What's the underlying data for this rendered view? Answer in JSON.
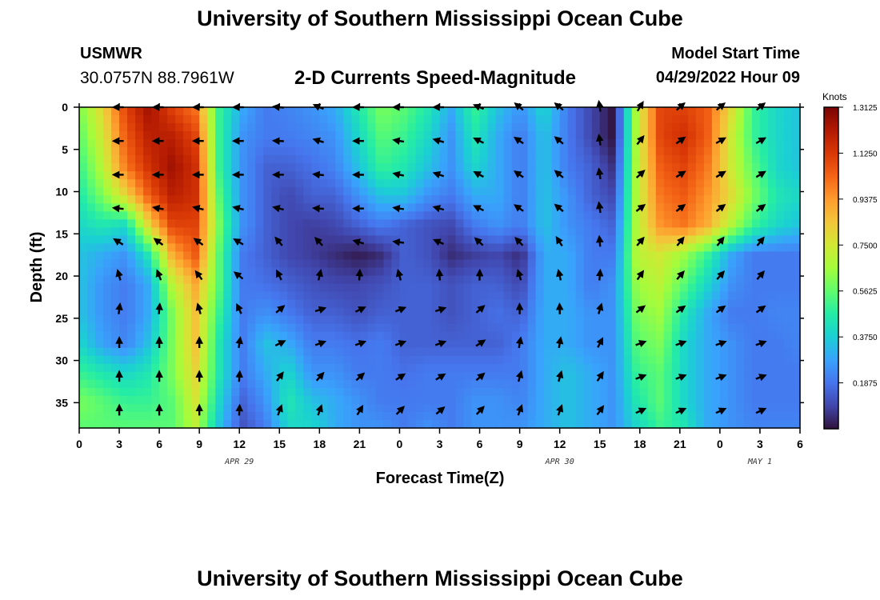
{
  "header": {
    "title": "University of Southern Mississippi Ocean Cube",
    "station": "USMWR",
    "coordinates": "30.0757N  88.7961W",
    "model_start_label": "Model Start Time",
    "model_start_value": "04/29/2022 Hour 09"
  },
  "footer": {
    "title": "University of Southern Mississippi Ocean Cube"
  },
  "chart_data": {
    "type": "heatmap",
    "title": "2-D Currents Speed-Magnitude",
    "xlabel": "Forecast Time(Z)",
    "ylabel": "Depth (ft)",
    "x_ticks": [
      "0",
      "3",
      "6",
      "9",
      "12",
      "15",
      "18",
      "21",
      "0",
      "3",
      "6",
      "9",
      "12",
      "15",
      "18",
      "21",
      "0",
      "3",
      "6"
    ],
    "x_hours": [
      0,
      3,
      6,
      9,
      12,
      15,
      18,
      21,
      24,
      27,
      30,
      33,
      36,
      39,
      42,
      45,
      48,
      51,
      54
    ],
    "date_labels": [
      {
        "text": "APR 29",
        "hour": 12
      },
      {
        "text": "APR 30",
        "hour": 36
      },
      {
        "text": "MAY 1",
        "hour": 51
      }
    ],
    "xlim": [
      0,
      54
    ],
    "y_ticks": [
      "0",
      "5",
      "10",
      "15",
      "20",
      "25",
      "30",
      "35"
    ],
    "y_values": [
      0,
      5,
      10,
      15,
      20,
      25,
      30,
      35
    ],
    "ylim": [
      0,
      38
    ],
    "colorbar": {
      "unit": "Knots",
      "ticks": [
        "1.3125",
        "1.1250",
        "0.9375",
        "0.7500",
        "0.5625",
        "0.3750",
        "0.1875"
      ],
      "tick_values": [
        1.3125,
        1.125,
        0.9375,
        0.75,
        0.5625,
        0.375,
        0.1875
      ],
      "range": [
        0,
        1.3125
      ],
      "colors": [
        "#30123b",
        "#4145ab",
        "#4675ed",
        "#39a2fc",
        "#1bcfd4",
        "#24eca6",
        "#61fc6c",
        "#a4fc3b",
        "#d1e834",
        "#f3c63a",
        "#fe9b2d",
        "#f36315",
        "#d93806",
        "#b11901",
        "#7a0403"
      ]
    },
    "arrow_hours": [
      3,
      6,
      9,
      12,
      15,
      18,
      21,
      24,
      27,
      30,
      33,
      36,
      39,
      42,
      45,
      48,
      51
    ],
    "arrow_depths": [
      0,
      4,
      8,
      12,
      16,
      20,
      24,
      28,
      32,
      36
    ],
    "speed_knots": [
      [
        0.6,
        0.8,
        1.1,
        1.25,
        1.1,
        1.0,
        0.5,
        0.3,
        0.2,
        0.22,
        0.25,
        0.3,
        0.45,
        0.6,
        0.55,
        0.45,
        0.3,
        0.5,
        0.35,
        0.25,
        0.4,
        0.2,
        0.1,
        0.0,
        0.7,
        1.1,
        1.1,
        1.05,
        0.8,
        0.5,
        0.4,
        0.35
      ],
      [
        0.55,
        0.75,
        1.05,
        1.2,
        1.2,
        1.1,
        0.5,
        0.25,
        0.2,
        0.2,
        0.22,
        0.25,
        0.4,
        0.55,
        0.5,
        0.4,
        0.25,
        0.45,
        0.3,
        0.2,
        0.35,
        0.2,
        0.1,
        0.0,
        0.7,
        1.1,
        1.15,
        1.05,
        0.75,
        0.5,
        0.4,
        0.35
      ],
      [
        0.5,
        0.7,
        1.0,
        1.15,
        1.25,
        1.15,
        0.5,
        0.25,
        0.15,
        0.15,
        0.18,
        0.22,
        0.35,
        0.5,
        0.45,
        0.35,
        0.25,
        0.4,
        0.3,
        0.2,
        0.35,
        0.2,
        0.15,
        0.05,
        0.7,
        1.05,
        1.1,
        1.0,
        0.75,
        0.55,
        0.4,
        0.35
      ],
      [
        0.45,
        0.6,
        0.8,
        1.05,
        1.2,
        1.15,
        0.55,
        0.25,
        0.15,
        0.1,
        0.15,
        0.15,
        0.25,
        0.35,
        0.35,
        0.25,
        0.2,
        0.3,
        0.3,
        0.2,
        0.35,
        0.25,
        0.15,
        0.1,
        0.7,
        1.0,
        1.05,
        0.95,
        0.8,
        0.6,
        0.45,
        0.4
      ],
      [
        0.4,
        0.45,
        0.4,
        0.8,
        1.1,
        1.1,
        0.6,
        0.25,
        0.15,
        0.1,
        0.08,
        0.1,
        0.15,
        0.2,
        0.15,
        0.12,
        0.1,
        0.2,
        0.25,
        0.2,
        0.35,
        0.25,
        0.2,
        0.15,
        0.7,
        0.95,
        1.0,
        0.9,
        0.7,
        0.5,
        0.4,
        0.35
      ],
      [
        0.35,
        0.3,
        0.25,
        0.45,
        0.9,
        1.05,
        0.55,
        0.2,
        0.15,
        0.1,
        0.08,
        0.05,
        0.02,
        0.05,
        0.15,
        0.12,
        0.05,
        0.08,
        0.1,
        0.05,
        0.3,
        0.3,
        0.2,
        0.2,
        0.7,
        0.75,
        0.65,
        0.5,
        0.3,
        0.2,
        0.2,
        0.2
      ],
      [
        0.35,
        0.25,
        0.2,
        0.3,
        0.7,
        0.9,
        0.55,
        0.2,
        0.18,
        0.15,
        0.12,
        0.1,
        0.1,
        0.12,
        0.15,
        0.15,
        0.12,
        0.15,
        0.15,
        0.1,
        0.3,
        0.3,
        0.2,
        0.25,
        0.65,
        0.7,
        0.55,
        0.4,
        0.25,
        0.2,
        0.2,
        0.2
      ],
      [
        0.35,
        0.25,
        0.2,
        0.3,
        0.6,
        0.85,
        0.5,
        0.2,
        0.25,
        0.2,
        0.15,
        0.15,
        0.12,
        0.15,
        0.15,
        0.15,
        0.12,
        0.15,
        0.18,
        0.15,
        0.3,
        0.3,
        0.25,
        0.25,
        0.6,
        0.65,
        0.45,
        0.3,
        0.2,
        0.2,
        0.22,
        0.22
      ],
      [
        0.4,
        0.28,
        0.22,
        0.35,
        0.6,
        0.85,
        0.45,
        0.2,
        0.35,
        0.3,
        0.2,
        0.2,
        0.18,
        0.2,
        0.15,
        0.15,
        0.15,
        0.15,
        0.15,
        0.2,
        0.3,
        0.3,
        0.25,
        0.25,
        0.55,
        0.6,
        0.4,
        0.3,
        0.25,
        0.2,
        0.2,
        0.22
      ],
      [
        0.5,
        0.45,
        0.4,
        0.45,
        0.6,
        0.8,
        0.45,
        0.2,
        0.3,
        0.4,
        0.25,
        0.25,
        0.2,
        0.2,
        0.18,
        0.2,
        0.2,
        0.2,
        0.2,
        0.2,
        0.3,
        0.35,
        0.3,
        0.25,
        0.5,
        0.55,
        0.4,
        0.3,
        0.25,
        0.2,
        0.2,
        0.2
      ],
      [
        0.6,
        0.55,
        0.5,
        0.5,
        0.55,
        0.75,
        0.4,
        0.15,
        0.25,
        0.45,
        0.35,
        0.3,
        0.25,
        0.2,
        0.2,
        0.2,
        0.2,
        0.25,
        0.25,
        0.22,
        0.3,
        0.35,
        0.3,
        0.25,
        0.45,
        0.55,
        0.4,
        0.3,
        0.25,
        0.2,
        0.2,
        0.2
      ],
      [
        0.55,
        0.55,
        0.55,
        0.55,
        0.55,
        0.7,
        0.35,
        0.12,
        0.2,
        0.4,
        0.4,
        0.3,
        0.25,
        0.25,
        0.2,
        0.25,
        0.2,
        0.25,
        0.25,
        0.25,
        0.3,
        0.35,
        0.3,
        0.25,
        0.4,
        0.5,
        0.45,
        0.3,
        0.25,
        0.22,
        0.22,
        0.22
      ]
    ],
    "direction_deg": [
      [
        180,
        180,
        180,
        180,
        180,
        180,
        180,
        180,
        180,
        170,
        160,
        150,
        180,
        180,
        180,
        180,
        180,
        160,
        150,
        140,
        150,
        135,
        110,
        80,
        60,
        45,
        40,
        40,
        40,
        40,
        40,
        40
      ],
      [
        180,
        180,
        180,
        180,
        180,
        180,
        180,
        180,
        180,
        175,
        165,
        155,
        180,
        175,
        170,
        165,
        165,
        155,
        150,
        145,
        150,
        135,
        110,
        80,
        55,
        40,
        35,
        30,
        30,
        30,
        30,
        30
      ],
      [
        180,
        180,
        180,
        180,
        180,
        180,
        180,
        180,
        180,
        180,
        175,
        165,
        180,
        170,
        165,
        160,
        160,
        150,
        150,
        145,
        150,
        135,
        110,
        80,
        45,
        35,
        30,
        30,
        30,
        30,
        30,
        30
      ],
      [
        180,
        180,
        180,
        180,
        180,
        180,
        180,
        180,
        180,
        180,
        180,
        180,
        180,
        175,
        170,
        165,
        165,
        155,
        150,
        145,
        150,
        135,
        110,
        80,
        40,
        35,
        35,
        35,
        35,
        35,
        35,
        35
      ],
      [
        170,
        165,
        165,
        160,
        150,
        150,
        150,
        150,
        150,
        150,
        170,
        175,
        180,
        175,
        170,
        165,
        165,
        155,
        150,
        145,
        150,
        135,
        110,
        80,
        35,
        40,
        40,
        40,
        40,
        40,
        40,
        40
      ],
      [
        140,
        135,
        135,
        135,
        135,
        140,
        140,
        150,
        140,
        100,
        100,
        110,
        150,
        170,
        175,
        160,
        140,
        125,
        120,
        125,
        110,
        110,
        100,
        80,
        60,
        60,
        60,
        60,
        60,
        60,
        60,
        60
      ],
      [
        90,
        90,
        95,
        100,
        105,
        120,
        130,
        140,
        140,
        100,
        70,
        60,
        60,
        70,
        80,
        80,
        60,
        70,
        90,
        100,
        100,
        100,
        90,
        70,
        55,
        45,
        45,
        45,
        45,
        45,
        45,
        45
      ],
      [
        80,
        80,
        80,
        80,
        85,
        100,
        120,
        110,
        40,
        20,
        10,
        10,
        20,
        20,
        10,
        10,
        10,
        20,
        90,
        90,
        90,
        90,
        80,
        60,
        35,
        35,
        35,
        35,
        35,
        35,
        35,
        35
      ],
      [
        90,
        90,
        90,
        90,
        90,
        90,
        90,
        80,
        35,
        20,
        20,
        20,
        20,
        20,
        20,
        20,
        20,
        20,
        80,
        80,
        80,
        80,
        70,
        50,
        20,
        20,
        20,
        20,
        20,
        20,
        20,
        20
      ],
      [
        90,
        90,
        90,
        90,
        90,
        90,
        90,
        85,
        60,
        45,
        45,
        45,
        40,
        35,
        30,
        30,
        30,
        30,
        75,
        75,
        75,
        75,
        65,
        45,
        20,
        20,
        20,
        20,
        20,
        20,
        20,
        20
      ],
      [
        90,
        90,
        90,
        90,
        90,
        90,
        90,
        85,
        70,
        70,
        70,
        70,
        60,
        50,
        45,
        40,
        40,
        40,
        70,
        70,
        70,
        70,
        60,
        45,
        25,
        25,
        25,
        25,
        25,
        25,
        25,
        25
      ],
      [
        90,
        90,
        90,
        90,
        90,
        90,
        90,
        90,
        70,
        70,
        70,
        70,
        60,
        50,
        45,
        40,
        40,
        40,
        70,
        70,
        70,
        70,
        60,
        45,
        25,
        25,
        25,
        25,
        25,
        25,
        25,
        25
      ]
    ],
    "grid_depths": [
      0,
      3.5,
      7,
      10.5,
      14,
      17.5,
      21,
      24.5,
      28,
      31.5,
      35,
      38
    ],
    "grid_hours": [
      0,
      1.742,
      3.484,
      5.226,
      6.968,
      8.71,
      10.452,
      12.194,
      13.936,
      15.678,
      17.42,
      19.162,
      20.904,
      22.646,
      24.388,
      26.13,
      27.872,
      29.614,
      31.356,
      33.098,
      34.84,
      36.582,
      38.324,
      40.066,
      41.808,
      43.55,
      45.292,
      47.034,
      48.776,
      50.518,
      52.26,
      54
    ]
  }
}
